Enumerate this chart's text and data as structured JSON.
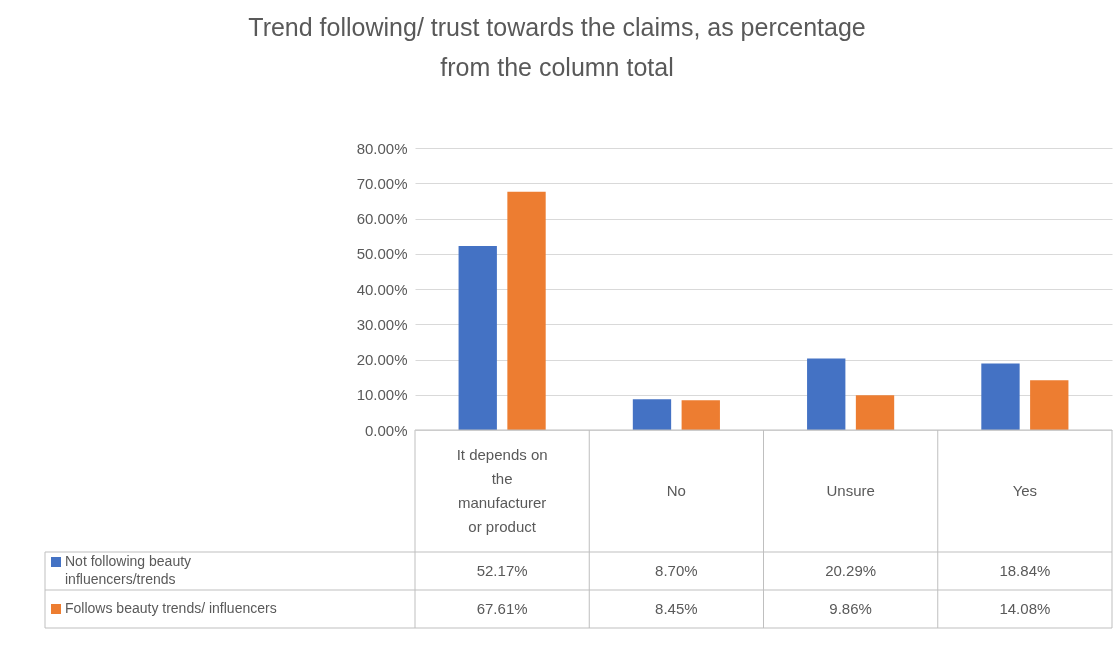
{
  "chart_data": {
    "type": "bar",
    "title": "Trend following/ trust towards the claims, as percentage from the column total",
    "categories": [
      "It depends on the manufacturer or product",
      "No",
      "Unsure",
      "Yes"
    ],
    "series": [
      {
        "name": "Not following beauty influencers/trends",
        "color": "#4472c4",
        "values": [
          52.17,
          8.7,
          20.29,
          18.84
        ],
        "value_labels": [
          "52.17%",
          "8.70%",
          "20.29%",
          "18.84%"
        ]
      },
      {
        "name": "Follows beauty trends/ influencers",
        "color": "#ed7d31",
        "values": [
          67.61,
          8.45,
          9.86,
          14.08
        ],
        "value_labels": [
          "67.61%",
          "8.45%",
          "9.86%",
          "14.08%"
        ]
      }
    ],
    "ylim": [
      0,
      80
    ],
    "yticks": [
      {
        "value": 0,
        "label": "0.00%"
      },
      {
        "value": 10,
        "label": "10.00%"
      },
      {
        "value": 20,
        "label": "20.00%"
      },
      {
        "value": 30,
        "label": "30.00%"
      },
      {
        "value": 40,
        "label": "40.00%"
      },
      {
        "value": 50,
        "label": "50.00%"
      },
      {
        "value": 60,
        "label": "60.00%"
      },
      {
        "value": 70,
        "label": "70.00%"
      },
      {
        "value": 80,
        "label": "80.00%"
      }
    ],
    "grid": true,
    "legend": "bottom"
  }
}
